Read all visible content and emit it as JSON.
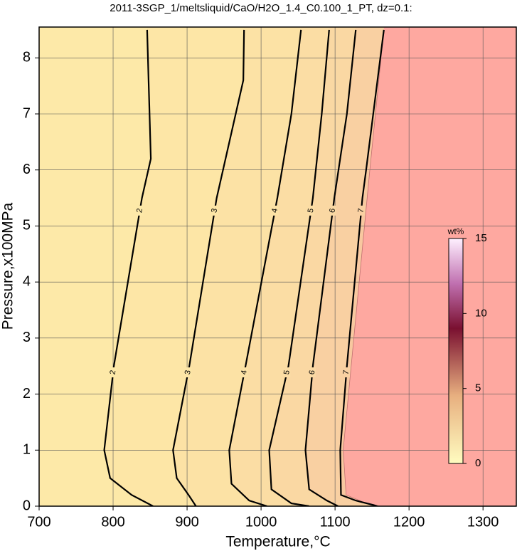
{
  "chart_data": {
    "type": "contour",
    "title": "2011-3SGP_1/meltsliquid/CaO/H2O_1.4_C0.100_1_PT, dz=0.1:",
    "xlabel": "Temperature,°C",
    "ylabel": "Pressure,x100MPa",
    "xlim": [
      700,
      1345
    ],
    "ylim": [
      0,
      8.55
    ],
    "xticks": [
      700,
      800,
      900,
      1000,
      1100,
      1200,
      1300
    ],
    "yticks": [
      0,
      1,
      2,
      3,
      4,
      5,
      6,
      7,
      8
    ],
    "grid": true,
    "contours": [
      {
        "level": 2,
        "T": [
          846,
          851,
          839,
          801,
          788,
          796,
          825,
          854
        ],
        "P": [
          8.5,
          6.2,
          5.5,
          2.5,
          1,
          0.5,
          0.2,
          0
        ]
      },
      {
        "level": 3,
        "T": [
          977,
          976,
          940,
          903,
          881,
          886,
          902,
          912
        ],
        "P": [
          8.5,
          7.6,
          5.5,
          2.5,
          1,
          0.5,
          0.2,
          0
        ]
      },
      {
        "level": 4,
        "T": [
          1054,
          1041,
          1022,
          979,
          957,
          960,
          984,
          1008
        ],
        "P": [
          8.5,
          7,
          5.5,
          2.5,
          1,
          0.4,
          0.1,
          0
        ]
      },
      {
        "level": 5,
        "T": [
          1092,
          1082,
          1070,
          1037,
          1011,
          1014,
          1041,
          1065
        ],
        "P": [
          8.5,
          7,
          5.5,
          2.5,
          1,
          0.3,
          0.05,
          0
        ]
      },
      {
        "level": 6,
        "T": [
          1128,
          1116,
          1099,
          1070,
          1060,
          1065,
          1089,
          1104
        ],
        "P": [
          8.5,
          7,
          5.5,
          2.5,
          1,
          0.3,
          0.1,
          0
        ]
      },
      {
        "level": 7,
        "T": [
          1166,
          1142,
          1137,
          1116,
          1107,
          1108,
          1128,
          1152,
          1157
        ],
        "P": [
          8.5,
          6,
          5.5,
          2.5,
          1,
          0.2,
          0.1,
          0.02,
          0
        ]
      }
    ],
    "boundary": {
      "T": [
        1166,
        1147,
        1111,
        1115,
        1137,
        1161
      ],
      "P": [
        8.5,
        6,
        1,
        0.2,
        0.08,
        0
      ]
    },
    "colorbar": {
      "label": "wt%",
      "lim": [
        0,
        15
      ],
      "ticks": [
        0,
        5,
        10,
        15
      ]
    }
  }
}
